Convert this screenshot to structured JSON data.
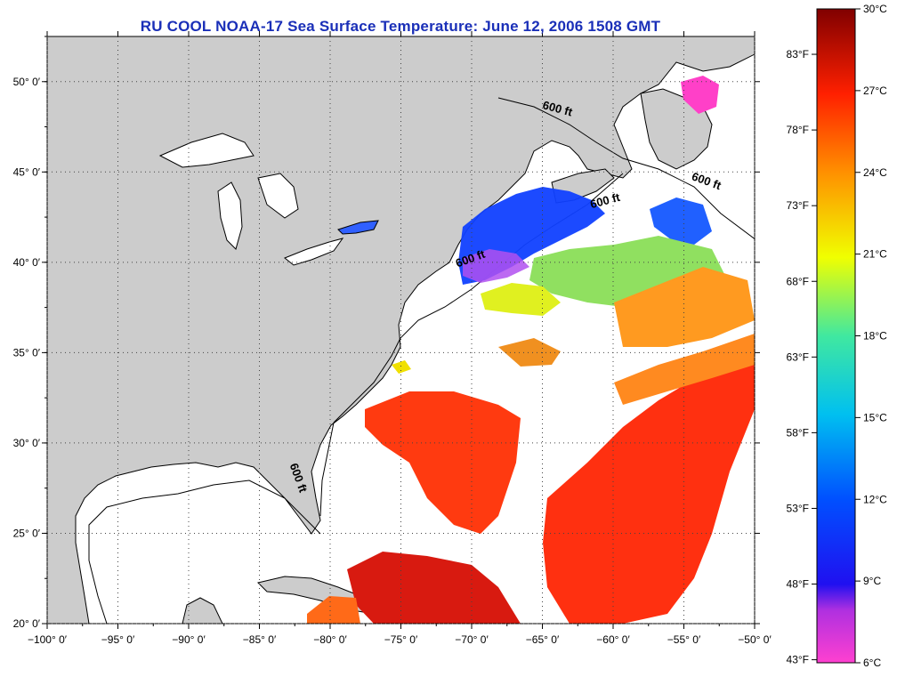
{
  "title": "RU COOL  NOAA-17  Sea Surface Temperature:  June 12, 2006 1508 GMT",
  "map": {
    "lon_range": [
      -100,
      -50
    ],
    "lat_range": [
      20,
      52.5
    ],
    "lon_ticks": [
      {
        "value": -100,
        "label": "−100° 0′"
      },
      {
        "value": -95,
        "label": "−95° 0′"
      },
      {
        "value": -90,
        "label": "−90° 0′"
      },
      {
        "value": -85,
        "label": "−85° 0′"
      },
      {
        "value": -80,
        "label": "−80° 0′"
      },
      {
        "value": -75,
        "label": "−75° 0′"
      },
      {
        "value": -70,
        "label": "−70° 0′"
      },
      {
        "value": -65,
        "label": "−65° 0′"
      },
      {
        "value": -60,
        "label": "−60° 0′"
      },
      {
        "value": -55,
        "label": "−55° 0′"
      },
      {
        "value": -50,
        "label": "−50° 0′"
      }
    ],
    "lat_ticks": [
      {
        "value": 20,
        "label": "20° 0′"
      },
      {
        "value": 25,
        "label": "25° 0′"
      },
      {
        "value": 30,
        "label": "30° 0′"
      },
      {
        "value": 35,
        "label": "35° 0′"
      },
      {
        "value": 40,
        "label": "40° 0′"
      },
      {
        "value": 45,
        "label": "45° 0′"
      },
      {
        "value": 50,
        "label": "50° 0′"
      }
    ],
    "contour_labels": [
      {
        "text": "600 ft",
        "lon": -64,
        "lat": 48.3,
        "angle": 15
      },
      {
        "text": "600 ft",
        "lon": -53.5,
        "lat": 44.3,
        "angle": 20
      },
      {
        "text": "600 ft",
        "lon": -60.5,
        "lat": 43.2,
        "angle": -15
      },
      {
        "text": "600 ft",
        "lon": -70,
        "lat": 40.0,
        "angle": -20
      },
      {
        "text": "600 ft",
        "lon": -82.5,
        "lat": 28.0,
        "angle": 70
      }
    ],
    "grid": "dotted",
    "land_color": "#cccccc",
    "no_data_color": "#ffffff"
  },
  "colorbar": {
    "min_c": 6,
    "max_c": 30,
    "celsius_labels": [
      {
        "value": 30,
        "label": "30°C"
      },
      {
        "value": 27,
        "label": "27°C"
      },
      {
        "value": 24,
        "label": "24°C"
      },
      {
        "value": 21,
        "label": "21°C"
      },
      {
        "value": 18,
        "label": "18°C"
      },
      {
        "value": 15,
        "label": "15°C"
      },
      {
        "value": 12,
        "label": "12°C"
      },
      {
        "value": 9,
        "label": "9°C"
      },
      {
        "value": 6,
        "label": "6°C"
      }
    ],
    "fahrenheit_labels": [
      {
        "value": 83,
        "label": "83°F"
      },
      {
        "value": 78,
        "label": "78°F"
      },
      {
        "value": 73,
        "label": "73°F"
      },
      {
        "value": 68,
        "label": "68°F"
      },
      {
        "value": 63,
        "label": "63°F"
      },
      {
        "value": 58,
        "label": "58°F"
      },
      {
        "value": 53,
        "label": "53°F"
      },
      {
        "value": 48,
        "label": "48°F"
      },
      {
        "value": 43,
        "label": "43°F"
      }
    ],
    "stops": [
      {
        "t": 0.0,
        "color": "#ff40d0"
      },
      {
        "t": 0.08,
        "color": "#b030e0"
      },
      {
        "t": 0.12,
        "color": "#2010f0"
      },
      {
        "t": 0.25,
        "color": "#0050ff"
      },
      {
        "t": 0.38,
        "color": "#00c0f0"
      },
      {
        "t": 0.5,
        "color": "#40e8a0"
      },
      {
        "t": 0.62,
        "color": "#f0ff00"
      },
      {
        "t": 0.75,
        "color": "#ff9000"
      },
      {
        "t": 0.87,
        "color": "#ff2000"
      },
      {
        "t": 1.0,
        "color": "#800000"
      }
    ]
  }
}
